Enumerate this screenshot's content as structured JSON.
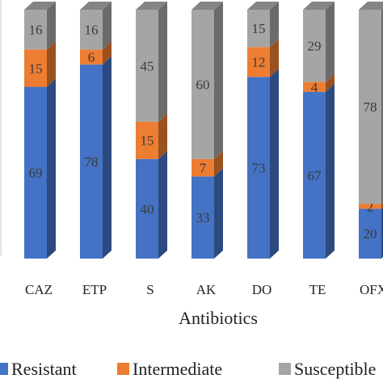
{
  "chart_data": {
    "type": "bar",
    "stacked": true,
    "style": "3d-column",
    "xlabel": "Antibiotics",
    "ylabel": "",
    "title": "",
    "ylim": [
      0,
      100
    ],
    "categories": [
      "CAZ",
      "ETP",
      "S",
      "AK",
      "DO",
      "TE",
      "OFX"
    ],
    "series": [
      {
        "name": "Resistant",
        "color": "#4472C4",
        "values": [
          69,
          78,
          40,
          33,
          73,
          67,
          20
        ]
      },
      {
        "name": "Intermediate",
        "color": "#ED7D31",
        "values": [
          15,
          6,
          15,
          7,
          12,
          4,
          2
        ]
      },
      {
        "name": "Susceptible",
        "color": "#A5A5A5",
        "values": [
          16,
          16,
          45,
          60,
          15,
          29,
          78
        ]
      }
    ],
    "legend": {
      "placement": "bottom",
      "items": [
        "Resistant",
        "Intermediate",
        "Susceptible"
      ]
    },
    "grid": false
  }
}
